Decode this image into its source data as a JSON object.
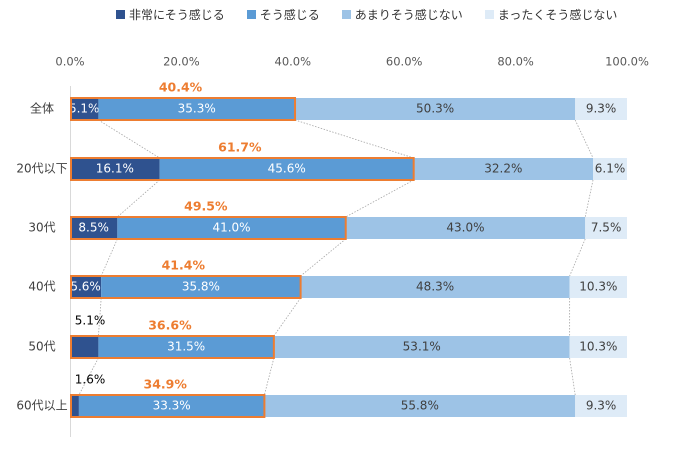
{
  "chart_data": {
    "type": "bar",
    "orientation": "horizontal",
    "stacked": true,
    "percent_stacked": true,
    "xlim": [
      0,
      100
    ],
    "x_ticks": [
      "0.0%",
      "20.0%",
      "40.0%",
      "60.0%",
      "80.0%",
      "100.0%"
    ],
    "categories": [
      "全体",
      "20代以下",
      "30代",
      "40代",
      "50代",
      "60代以上"
    ],
    "series": [
      {
        "name": "非常にそう感じる",
        "color": "#2f528f",
        "values": [
          5.1,
          16.1,
          8.5,
          5.6,
          5.1,
          1.6
        ]
      },
      {
        "name": "そう感じる",
        "color": "#5b9bd5",
        "values": [
          35.3,
          45.6,
          41.0,
          35.8,
          31.5,
          33.3
        ]
      },
      {
        "name": "あまりそう感じない",
        "color": "#9dc3e6",
        "values": [
          50.3,
          32.2,
          43.0,
          48.3,
          53.1,
          55.8
        ]
      },
      {
        "name": "まったくそう感じない",
        "color": "#deebf7",
        "values": [
          9.3,
          6.1,
          7.5,
          10.3,
          10.3,
          9.3
        ]
      }
    ],
    "data_labels": [
      [
        "5.1%",
        "35.3%",
        "50.3%",
        "9.3%"
      ],
      [
        "16.1%",
        "45.6%",
        "32.2%",
        "6.1%"
      ],
      [
        "8.5%",
        "41.0%",
        "43.0%",
        "7.5%"
      ],
      [
        "5.6%",
        "35.8%",
        "48.3%",
        "10.3%"
      ],
      [
        "5.1%",
        "31.5%",
        "53.1%",
        "10.3%"
      ],
      [
        "1.6%",
        "33.3%",
        "55.8%",
        "9.3%"
      ]
    ],
    "highlight_totals": [
      "40.4%",
      "61.7%",
      "49.5%",
      "41.4%",
      "36.6%",
      "34.9%"
    ],
    "highlight_color": "#ed7d31",
    "outside_first_label_rows": [
      4,
      5
    ],
    "legend_position": "top"
  }
}
